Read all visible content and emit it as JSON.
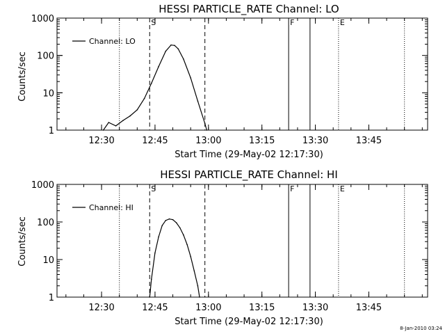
{
  "footer_date": "8-Jan-2010 03:24",
  "chart_data": [
    {
      "type": "line",
      "title": "HESSI PARTICLE_RATE Channel: LO",
      "xlabel": "Start Time (29-May-02 12:17:30)",
      "ylabel": "Counts/sec",
      "y_scale": "log",
      "ylim": [
        1,
        1000
      ],
      "xlim": [
        "12:17:30",
        "14:01:30"
      ],
      "x_ticks": [
        "12:30",
        "12:45",
        "13:00",
        "13:15",
        "13:30",
        "13:45"
      ],
      "y_ticks": [
        "1",
        "10",
        "100",
        "1000"
      ],
      "legend": {
        "placement": "top-left",
        "entries": [
          "Channel: LO"
        ]
      },
      "series": [
        {
          "name": "Channel: LO",
          "color": "#000000",
          "x": [
            "12:30:30",
            "12:32:00",
            "12:34:00",
            "12:36:00",
            "12:38:00",
            "12:40:00",
            "12:42:00",
            "12:44:00",
            "12:46:00",
            "12:48:00",
            "12:49:30",
            "12:50:30",
            "12:51:30",
            "12:53:00",
            "12:55:00",
            "12:57:00",
            "12:59:00",
            "12:59:30"
          ],
          "y": [
            1,
            1.6,
            1.3,
            1.8,
            2.4,
            3.5,
            7,
            18,
            50,
            130,
            190,
            185,
            150,
            80,
            25,
            6,
            1.5,
            1
          ]
        }
      ],
      "markers": [
        {
          "label": "S",
          "time": "12:43:30",
          "style": "dashed"
        },
        {
          "label": "",
          "time": "12:59:00",
          "style": "dashed"
        },
        {
          "label": "",
          "time": "12:35:00",
          "style": "dotted"
        },
        {
          "label": "F",
          "time": "13:22:30",
          "style": "solid"
        },
        {
          "label": "",
          "time": "13:28:30",
          "style": "solid"
        },
        {
          "label": "E",
          "time": "13:36:30",
          "style": "dotted"
        },
        {
          "label": "",
          "time": "13:55:00",
          "style": "dotted"
        }
      ]
    },
    {
      "type": "line",
      "title": "HESSI PARTICLE_RATE Channel: HI",
      "xlabel": "Start Time (29-May-02 12:17:30)",
      "ylabel": "Counts/sec",
      "y_scale": "log",
      "ylim": [
        1,
        1000
      ],
      "xlim": [
        "12:17:30",
        "14:01:30"
      ],
      "x_ticks": [
        "12:30",
        "12:45",
        "13:00",
        "13:15",
        "13:30",
        "13:45"
      ],
      "y_ticks": [
        "1",
        "10",
        "100",
        "1000"
      ],
      "legend": {
        "placement": "top-left",
        "entries": [
          "Channel: HI"
        ]
      },
      "series": [
        {
          "name": "Channel: HI",
          "color": "#000000",
          "x": [
            "12:43:30",
            "12:44:00",
            "12:45:00",
            "12:46:00",
            "12:47:00",
            "12:48:00",
            "12:49:00",
            "12:50:00",
            "12:51:00",
            "12:52:00",
            "12:53:00",
            "12:54:00",
            "12:55:00",
            "12:56:00",
            "12:57:00",
            "12:57:30"
          ],
          "y": [
            1,
            3,
            15,
            40,
            80,
            110,
            120,
            115,
            95,
            70,
            45,
            25,
            12,
            5,
            2,
            1
          ]
        }
      ],
      "markers": [
        {
          "label": "S",
          "time": "12:43:30",
          "style": "dashed"
        },
        {
          "label": "",
          "time": "12:59:00",
          "style": "dashed"
        },
        {
          "label": "",
          "time": "12:35:00",
          "style": "dotted"
        },
        {
          "label": "F",
          "time": "13:22:30",
          "style": "solid"
        },
        {
          "label": "",
          "time": "13:28:30",
          "style": "solid"
        },
        {
          "label": "E",
          "time": "13:36:30",
          "style": "dotted"
        },
        {
          "label": "",
          "time": "13:55:00",
          "style": "dotted"
        }
      ]
    }
  ]
}
